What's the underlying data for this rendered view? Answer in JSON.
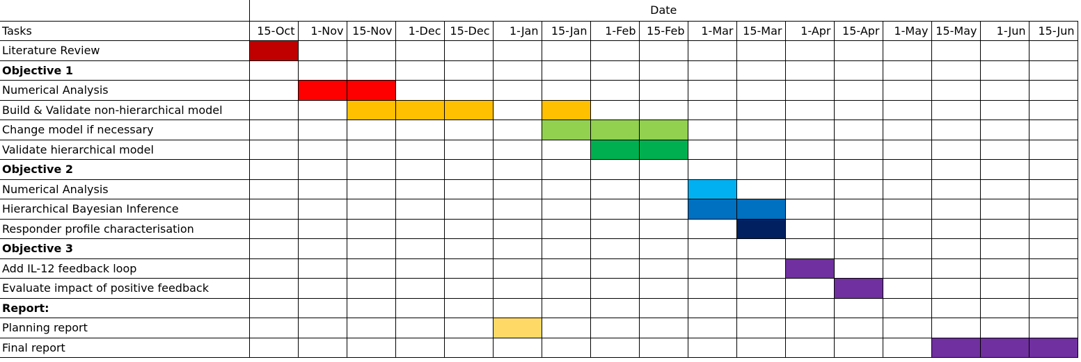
{
  "header": {
    "date_label": "Date",
    "tasks_label": "Tasks"
  },
  "chart_data": {
    "type": "table",
    "periods": [
      "15-Oct",
      "1-Nov",
      "15-Nov",
      "1-Dec",
      "15-Dec",
      "1-Jan",
      "15-Jan",
      "1-Feb",
      "15-Feb",
      "1-Mar",
      "15-Mar",
      "1-Apr",
      "15-Apr",
      "1-May",
      "15-May",
      "1-Jun",
      "15-Jun"
    ],
    "tasks": [
      {
        "label": "Literature Review",
        "bold": false,
        "periods": [
          "15-Oct"
        ],
        "color": "#C00000"
      },
      {
        "label": "Objective 1",
        "bold": true,
        "periods": [],
        "color": ""
      },
      {
        "label": "Numerical Analysis",
        "bold": false,
        "periods": [
          "1-Nov",
          "15-Nov"
        ],
        "color": "#FF0000"
      },
      {
        "label": "Build & Validate non-hierarchical model",
        "bold": false,
        "periods": [
          "15-Nov",
          "1-Dec",
          "15-Dec",
          "15-Jan"
        ],
        "color": "#FFC000"
      },
      {
        "label": "Change model if necessary",
        "bold": false,
        "periods": [
          "15-Jan",
          "1-Feb",
          "15-Feb"
        ],
        "color": "#92D050"
      },
      {
        "label": "Validate hierarchical model",
        "bold": false,
        "periods": [
          "1-Feb",
          "15-Feb"
        ],
        "color": "#00B050"
      },
      {
        "label": "Objective 2",
        "bold": true,
        "periods": [],
        "color": ""
      },
      {
        "label": "Numerical Analysis",
        "bold": false,
        "periods": [
          "1-Mar"
        ],
        "color": "#00B0F0"
      },
      {
        "label": "Hierarchical Bayesian Inference",
        "bold": false,
        "periods": [
          "1-Mar",
          "15-Mar"
        ],
        "color": "#0070C0"
      },
      {
        "label": "Responder profile characterisation",
        "bold": false,
        "periods": [
          "15-Mar"
        ],
        "color": "#002060"
      },
      {
        "label": "Objective 3",
        "bold": true,
        "periods": [],
        "color": ""
      },
      {
        "label": "Add IL-12 feedback loop",
        "bold": false,
        "periods": [
          "1-Apr"
        ],
        "color": "#7030A0"
      },
      {
        "label": "Evaluate impact of positive feedback",
        "bold": false,
        "periods": [
          "15-Apr"
        ],
        "color": "#7030A0"
      },
      {
        "label": "Report:",
        "bold": true,
        "periods": [],
        "color": ""
      },
      {
        "label": "Planning report",
        "bold": false,
        "periods": [
          "1-Jan"
        ],
        "color": "#FFD966"
      },
      {
        "label": "Final report",
        "bold": false,
        "periods": [
          "15-May",
          "1-Jun",
          "15-Jun"
        ],
        "color": "#7030A0"
      }
    ]
  }
}
